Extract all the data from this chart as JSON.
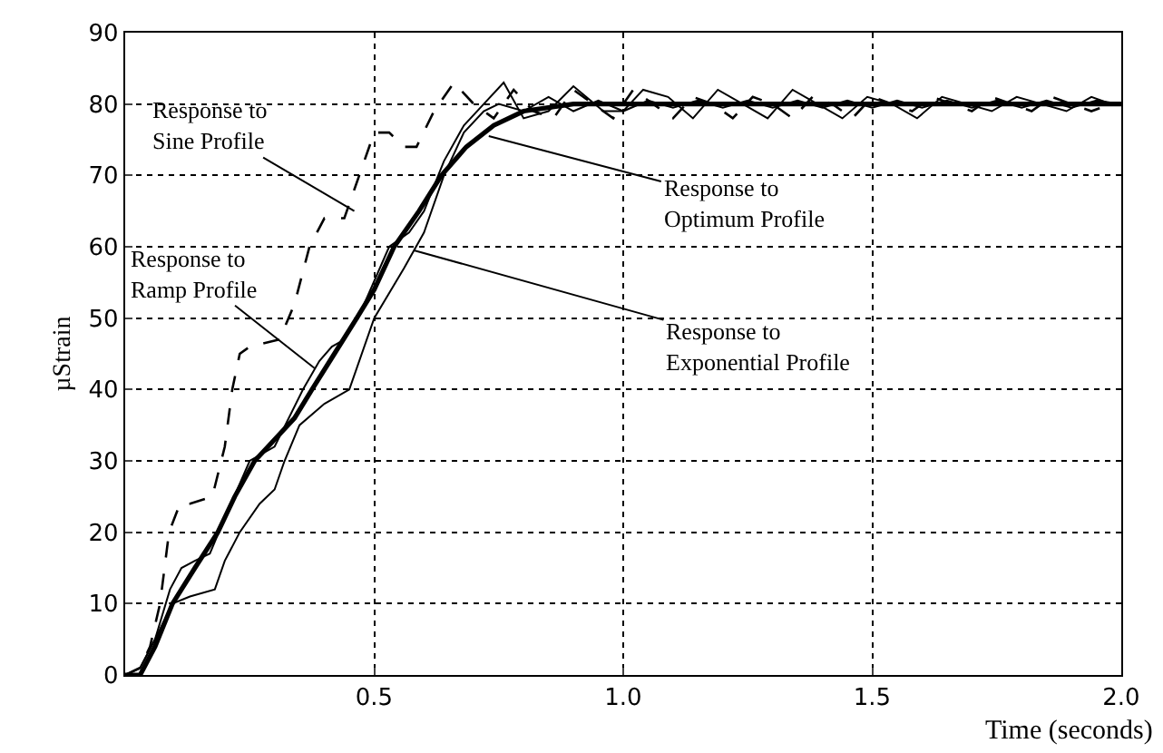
{
  "chart_data": {
    "type": "line",
    "xlabel": "Time (seconds)",
    "ylabel": "µStrain",
    "xlim": [
      0,
      2.0
    ],
    "ylim": [
      0,
      90
    ],
    "xticks": [
      {
        "value": 0,
        "label": null
      },
      {
        "value": 0.5,
        "label": "0.5"
      },
      {
        "value": 1.0,
        "label": "1.0"
      },
      {
        "value": 1.5,
        "label": "1.5"
      },
      {
        "value": 2.0,
        "label": "2.0"
      }
    ],
    "yticks": [
      0,
      10,
      20,
      30,
      40,
      50,
      60,
      70,
      80,
      90
    ],
    "grid": true,
    "legend": false,
    "marker": "none",
    "series": [
      {
        "color": "#000000",
        "line_style": "dashed",
        "x": [
          0,
          0.03,
          0.05,
          0.07,
          0.088,
          0.11,
          0.13,
          0.175,
          0.2,
          0.215,
          0.23,
          0.25,
          0.31,
          0.34,
          0.37,
          0.4,
          0.44,
          0.47,
          0.5,
          0.53,
          0.56,
          0.585,
          0.62,
          0.66,
          0.7,
          0.74,
          0.78,
          0.82,
          0.86,
          0.9,
          0.94,
          0.98,
          1.02,
          1.06,
          1.1,
          1.14,
          1.18,
          1.22,
          1.26,
          1.3,
          1.34,
          1.38,
          1.42,
          1.46,
          1.5,
          1.54,
          1.58,
          1.62,
          1.66,
          1.7,
          1.74,
          1.78,
          1.82,
          1.86,
          1.9,
          1.94,
          1.98
        ],
        "values": [
          0,
          1,
          4,
          10,
          20,
          24,
          24,
          25,
          32,
          40,
          45,
          46,
          47,
          52,
          60,
          64,
          64,
          70,
          76,
          76,
          74,
          74,
          79,
          83,
          80,
          78,
          82,
          79,
          78,
          82,
          80,
          78,
          82,
          80,
          78,
          81,
          80,
          78,
          81,
          80,
          78,
          81,
          80,
          78,
          81,
          80,
          79,
          81,
          80,
          79,
          81,
          80,
          79,
          81,
          80,
          79,
          80
        ]
      },
      {
        "color": "#000000",
        "line_style": "solid",
        "x": [
          0,
          0.03,
          0.06,
          0.09,
          0.113,
          0.14,
          0.17,
          0.2,
          0.25,
          0.3,
          0.357,
          0.39,
          0.415,
          0.44,
          0.48,
          0.53,
          0.57,
          0.6,
          0.64,
          0.68,
          0.72,
          0.76,
          0.8,
          0.85,
          0.9,
          0.96,
          1.0,
          1.04,
          1.09,
          1.14,
          1.19,
          1.24,
          1.29,
          1.34,
          1.39,
          1.44,
          1.49,
          1.54,
          1.59,
          1.64,
          1.69,
          1.74,
          1.79,
          1.84,
          1.89,
          1.94,
          1.98
        ],
        "values": [
          0,
          1,
          5,
          12,
          15,
          16,
          17,
          22,
          30,
          32,
          40,
          44,
          46,
          47,
          52,
          60,
          62,
          65,
          72,
          77,
          80,
          83,
          78,
          79,
          82.5,
          79,
          79,
          82,
          81,
          78,
          82,
          80,
          78,
          82,
          80,
          78,
          81,
          80,
          78,
          81,
          80,
          79,
          81,
          80,
          79,
          81,
          80
        ]
      },
      {
        "color": "#000000",
        "line_style": "solid",
        "x": [
          0,
          0.03,
          0.06,
          0.095,
          0.13,
          0.18,
          0.2,
          0.23,
          0.27,
          0.3,
          0.32,
          0.35,
          0.4,
          0.45,
          0.5,
          0.56,
          0.6,
          0.64,
          0.68,
          0.72,
          0.75,
          0.8,
          0.85,
          0.9,
          0.95,
          1.0,
          1.05,
          1.1,
          1.15,
          1.2,
          1.25,
          1.3,
          1.35,
          1.4,
          1.45,
          1.5,
          1.55,
          1.6,
          1.65,
          1.7,
          1.75,
          1.8,
          1.85,
          1.9,
          1.95,
          2.0
        ],
        "values": [
          0,
          1,
          5,
          10,
          11,
          12,
          16,
          20,
          24,
          26,
          30,
          35,
          38,
          40,
          50,
          57,
          62,
          70,
          76,
          79,
          80,
          79,
          81,
          79,
          80.5,
          79,
          80.5,
          79.5,
          80.5,
          79.5,
          80.5,
          79.5,
          80.5,
          79.5,
          80.5,
          79.5,
          80.5,
          79.5,
          80.5,
          79.5,
          80.5,
          79.5,
          80.5,
          79.5,
          80.5,
          80
        ]
      },
      {
        "color": "#000000",
        "line_style": "solid",
        "x": [
          0,
          0.03,
          0.06,
          0.095,
          0.14,
          0.186,
          0.22,
          0.26,
          0.3,
          0.34,
          0.375,
          0.42,
          0.465,
          0.5,
          0.54,
          0.59,
          0.635,
          0.685,
          0.74,
          0.8,
          0.9,
          1.0,
          2.0
        ],
        "values": [
          0,
          0,
          4,
          10,
          15,
          20,
          25,
          30,
          33,
          36,
          40,
          45,
          50,
          54,
          60,
          65,
          70,
          74,
          77,
          79,
          80,
          80,
          80
        ]
      }
    ],
    "annotations": [
      {
        "text": "Response to\nSine Profile",
        "x": 0.46,
        "y": 65
      },
      {
        "text": "Response to\nRamp Profile",
        "x": 0.38,
        "y": 43
      },
      {
        "text": "Response to\nOptimum Profile",
        "x": 0.73,
        "y": 75.5
      },
      {
        "text": "Response to\nExponential Profile",
        "x": 0.58,
        "y": 59.5
      }
    ]
  }
}
